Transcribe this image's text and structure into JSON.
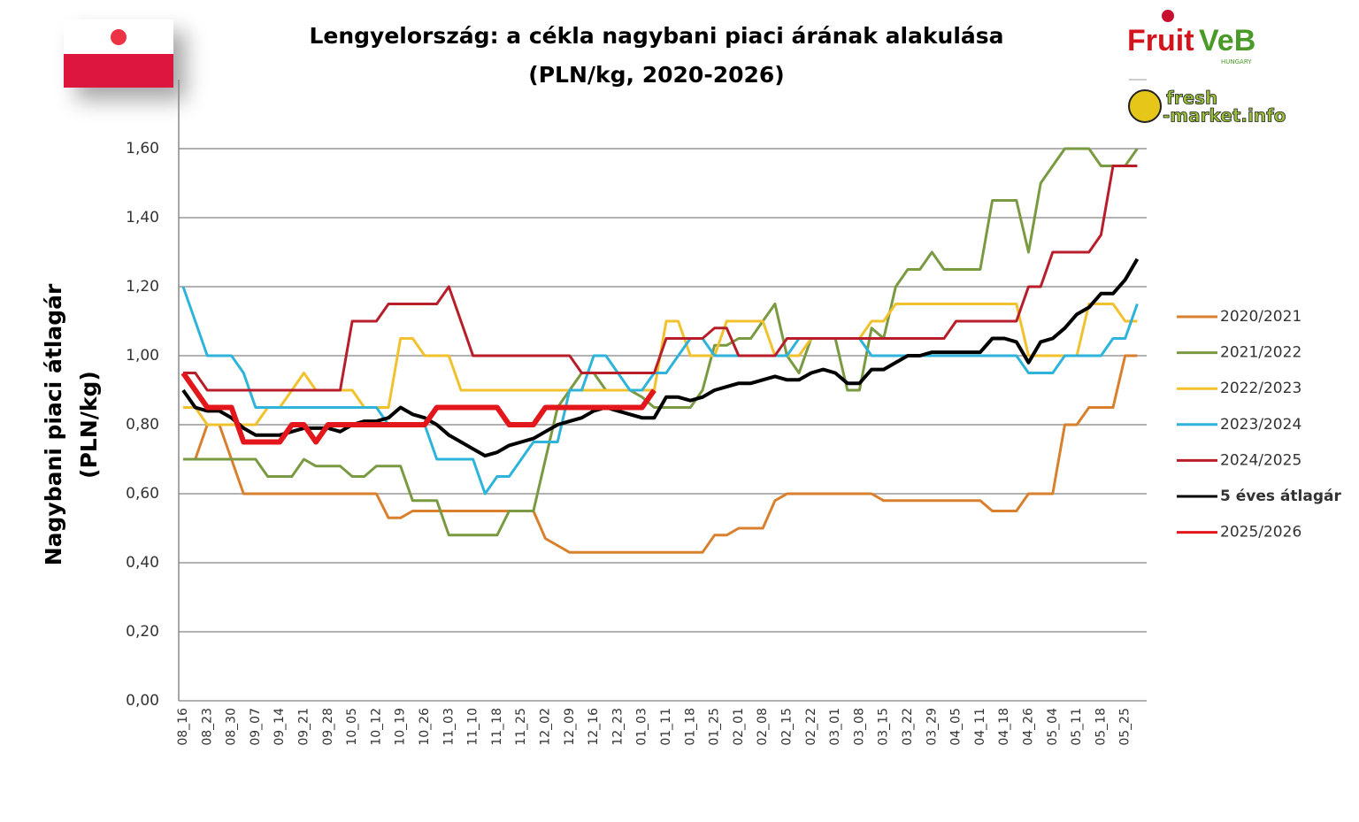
{
  "chart_data": {
    "type": "line",
    "title": "Lengyelország: a cékla nagybani piaci árának alakulása",
    "subtitle": "(PLN/kg, 2020-2026)",
    "y_label": "Nagybani piaci átlagár",
    "y_label_unit": "(PLN/kg)",
    "logos": {
      "brand": "Fruit",
      "brand_end": "VeB",
      "brand_sub": "HUNGARY",
      "site_top": "fresh",
      "site_bottom": "-market.info"
    },
    "grid": true,
    "ylim": [
      0,
      1.8
    ],
    "yticks": [
      {
        "value": 0,
        "label": "0,00"
      },
      {
        "value": 0.2,
        "label": "0,20"
      },
      {
        "value": 0.4,
        "label": "0,40"
      },
      {
        "value": 0.6,
        "label": "0,60"
      },
      {
        "value": 0.8,
        "label": "0,80"
      },
      {
        "value": 1.0,
        "label": "1,00"
      },
      {
        "value": 1.2,
        "label": "1,20"
      },
      {
        "value": 1.4,
        "label": "1,40"
      },
      {
        "value": 1.6,
        "label": "1,60"
      }
    ],
    "categories": [
      "08_16",
      null,
      "08_23",
      null,
      "08_30",
      null,
      "09_07",
      null,
      "09_14",
      null,
      "09_21",
      null,
      "09_28",
      null,
      "10_05",
      null,
      "10_12",
      null,
      "10_19",
      null,
      "10_26",
      null,
      "11_03",
      null,
      "11_10",
      null,
      "11_18",
      null,
      "11_25",
      null,
      "12_02",
      null,
      "12_09",
      null,
      "12_16",
      null,
      "12_23",
      null,
      "01_03",
      null,
      "01_11",
      null,
      "01_18",
      null,
      "01_25",
      null,
      "02_01",
      null,
      "02_08",
      null,
      "02_15",
      null,
      "02_22",
      null,
      "03_01",
      null,
      "03_08",
      null,
      "03_15",
      null,
      "03_22",
      null,
      "03_29",
      null,
      "04_05",
      null,
      "04_11",
      null,
      "04_18",
      null,
      "04_26",
      null,
      "05_04",
      null,
      "05_11",
      null,
      "05_18",
      null,
      "05_25",
      null
    ],
    "series": [
      {
        "name": "2020/2021",
        "color": "#d9802e",
        "width": 3,
        "values": [
          0.7,
          0.7,
          0.8,
          0.8,
          0.7,
          0.6,
          0.6,
          0.6,
          0.6,
          0.6,
          0.6,
          0.6,
          0.6,
          0.6,
          0.6,
          0.6,
          0.6,
          0.53,
          0.53,
          0.55,
          0.55,
          0.55,
          0.55,
          0.55,
          0.55,
          0.55,
          0.55,
          0.55,
          0.55,
          0.55,
          0.47,
          0.45,
          0.43,
          0.43,
          0.43,
          0.43,
          0.43,
          0.43,
          0.43,
          0.43,
          0.43,
          0.43,
          0.43,
          0.43,
          0.48,
          0.48,
          0.5,
          0.5,
          0.5,
          0.58,
          0.6,
          0.6,
          0.6,
          0.6,
          0.6,
          0.6,
          0.6,
          0.6,
          0.58,
          0.58,
          0.58,
          0.58,
          0.58,
          0.58,
          0.58,
          0.58,
          0.58,
          0.55,
          0.55,
          0.55,
          0.6,
          0.6,
          0.6,
          0.8,
          0.8,
          0.85,
          0.85,
          0.85,
          1.0,
          1.0
        ]
      },
      {
        "name": "2021/2022",
        "color": "#7a9a42",
        "width": 3,
        "values": [
          0.7,
          0.7,
          0.7,
          0.7,
          0.7,
          0.7,
          0.7,
          0.65,
          0.65,
          0.65,
          0.7,
          0.68,
          0.68,
          0.68,
          0.65,
          0.65,
          0.68,
          0.68,
          0.68,
          0.58,
          0.58,
          0.58,
          0.48,
          0.48,
          0.48,
          0.48,
          0.48,
          0.55,
          0.55,
          0.55,
          0.7,
          0.85,
          0.9,
          0.95,
          0.95,
          0.9,
          0.9,
          0.9,
          0.88,
          0.85,
          0.85,
          0.85,
          0.85,
          0.9,
          1.03,
          1.03,
          1.05,
          1.05,
          1.1,
          1.15,
          1.0,
          0.95,
          1.05,
          1.05,
          1.05,
          0.9,
          0.9,
          1.08,
          1.05,
          1.2,
          1.25,
          1.25,
          1.3,
          1.25,
          1.25,
          1.25,
          1.25,
          1.45,
          1.45,
          1.45,
          1.3,
          1.5,
          1.55,
          1.6,
          1.6,
          1.6,
          1.55,
          1.55,
          1.55,
          1.6
        ]
      },
      {
        "name": "2022/2023",
        "color": "#f2c12e",
        "width": 3,
        "values": [
          0.85,
          0.85,
          0.8,
          0.8,
          0.8,
          0.8,
          0.8,
          0.85,
          0.85,
          0.9,
          0.95,
          0.9,
          0.9,
          0.9,
          0.9,
          0.85,
          0.85,
          0.85,
          1.05,
          1.05,
          1.0,
          1.0,
          1.0,
          0.9,
          0.9,
          0.9,
          0.9,
          0.9,
          0.9,
          0.9,
          0.9,
          0.9,
          0.9,
          0.9,
          0.9,
          0.9,
          0.9,
          0.9,
          0.9,
          0.9,
          1.1,
          1.1,
          1.0,
          1.0,
          1.0,
          1.1,
          1.1,
          1.1,
          1.1,
          1.0,
          1.0,
          1.0,
          1.05,
          1.05,
          1.05,
          1.05,
          1.05,
          1.1,
          1.1,
          1.15,
          1.15,
          1.15,
          1.15,
          1.15,
          1.15,
          1.15,
          1.15,
          1.15,
          1.15,
          1.15,
          1.0,
          1.0,
          1.0,
          1.0,
          1.0,
          1.15,
          1.15,
          1.15,
          1.1,
          1.1
        ]
      },
      {
        "name": "2023/2024",
        "color": "#2eb4da",
        "width": 3,
        "values": [
          1.2,
          1.1,
          1.0,
          1.0,
          1.0,
          0.95,
          0.85,
          0.85,
          0.85,
          0.85,
          0.85,
          0.85,
          0.85,
          0.85,
          0.85,
          0.85,
          0.85,
          0.8,
          0.8,
          0.8,
          0.8,
          0.7,
          0.7,
          0.7,
          0.7,
          0.6,
          0.65,
          0.65,
          0.7,
          0.75,
          0.75,
          0.75,
          0.9,
          0.9,
          1.0,
          1.0,
          0.95,
          0.9,
          0.9,
          0.95,
          0.95,
          1.0,
          1.05,
          1.05,
          1.0,
          1.0,
          1.0,
          1.0,
          1.0,
          1.0,
          1.0,
          1.05,
          1.05,
          1.05,
          1.05,
          1.05,
          1.05,
          1.0,
          1.0,
          1.0,
          1.0,
          1.0,
          1.0,
          1.0,
          1.0,
          1.0,
          1.0,
          1.0,
          1.0,
          1.0,
          0.95,
          0.95,
          0.95,
          1.0,
          1.0,
          1.0,
          1.0,
          1.05,
          1.05,
          1.15
        ]
      },
      {
        "name": "2024/2025",
        "color": "#b81e2a",
        "width": 3,
        "values": [
          0.95,
          0.95,
          0.9,
          0.9,
          0.9,
          0.9,
          0.9,
          0.9,
          0.9,
          0.9,
          0.9,
          0.9,
          0.9,
          0.9,
          1.1,
          1.1,
          1.1,
          1.15,
          1.15,
          1.15,
          1.15,
          1.15,
          1.2,
          1.1,
          1.0,
          1.0,
          1.0,
          1.0,
          1.0,
          1.0,
          1.0,
          1.0,
          1.0,
          0.95,
          0.95,
          0.95,
          0.95,
          0.95,
          0.95,
          0.95,
          1.05,
          1.05,
          1.05,
          1.05,
          1.08,
          1.08,
          1.0,
          1.0,
          1.0,
          1.0,
          1.05,
          1.05,
          1.05,
          1.05,
          1.05,
          1.05,
          1.05,
          1.05,
          1.05,
          1.05,
          1.05,
          1.05,
          1.05,
          1.05,
          1.1,
          1.1,
          1.1,
          1.1,
          1.1,
          1.1,
          1.2,
          1.2,
          1.3,
          1.3,
          1.3,
          1.3,
          1.35,
          1.55,
          1.55,
          1.55
        ]
      },
      {
        "name": "5 éves átlagár",
        "color": "#000000",
        "width": 4,
        "values": [
          0.9,
          0.85,
          0.84,
          0.84,
          0.82,
          0.79,
          0.77,
          0.77,
          0.77,
          0.78,
          0.79,
          0.79,
          0.79,
          0.78,
          0.8,
          0.81,
          0.81,
          0.82,
          0.85,
          0.83,
          0.82,
          0.8,
          0.77,
          0.75,
          0.73,
          0.71,
          0.72,
          0.74,
          0.75,
          0.76,
          0.78,
          0.8,
          0.81,
          0.82,
          0.84,
          0.85,
          0.84,
          0.83,
          0.82,
          0.82,
          0.88,
          0.88,
          0.87,
          0.88,
          0.9,
          0.91,
          0.92,
          0.92,
          0.93,
          0.94,
          0.93,
          0.93,
          0.95,
          0.96,
          0.95,
          0.92,
          0.92,
          0.96,
          0.96,
          0.98,
          1.0,
          1.0,
          1.01,
          1.01,
          1.01,
          1.01,
          1.01,
          1.05,
          1.05,
          1.04,
          0.98,
          1.04,
          1.05,
          1.08,
          1.12,
          1.14,
          1.18,
          1.18,
          1.22,
          1.28
        ]
      },
      {
        "name": "2025/2026",
        "color": "#e3171b",
        "width": 6,
        "values": [
          0.95,
          0.9,
          0.85,
          0.85,
          0.85,
          0.75,
          0.75,
          0.75,
          0.75,
          0.8,
          0.8,
          0.75,
          0.8,
          0.8,
          0.8,
          0.8,
          0.8,
          0.8,
          0.8,
          0.8,
          0.8,
          0.85,
          0.85,
          0.85,
          0.85,
          0.85,
          0.85,
          0.8,
          0.8,
          0.8,
          0.85,
          0.85,
          0.85,
          0.85,
          0.85,
          0.85,
          0.85,
          0.85,
          0.85,
          0.9,
          null,
          null,
          null,
          null,
          null,
          null,
          null,
          null,
          null,
          null,
          null,
          null,
          null,
          null,
          null,
          null,
          null,
          null,
          null,
          null,
          null,
          null,
          null,
          null,
          null,
          null,
          null,
          null,
          null,
          null,
          null,
          null,
          null,
          null,
          null,
          null,
          null,
          null,
          null,
          null
        ]
      }
    ]
  }
}
